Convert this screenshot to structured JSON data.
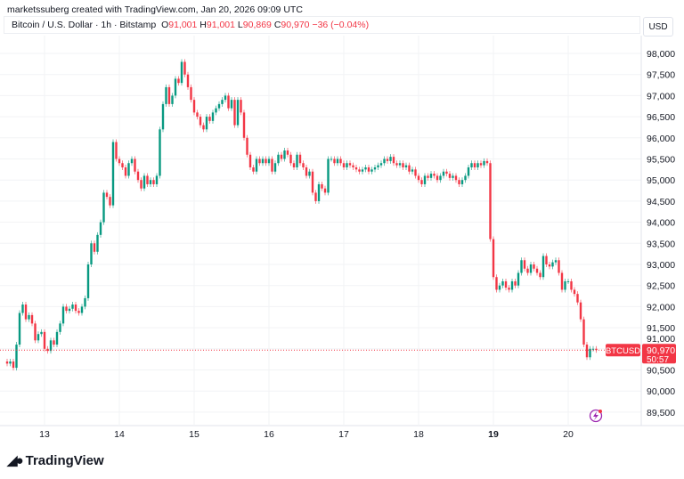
{
  "credit": "marketssuberg created with TradingView.com, Jan 20, 2026 09:09 UTC",
  "legend": {
    "symbol": "Bitcoin / U.S. Dollar · 1h · Bitstamp",
    "o_label": "O",
    "o": "91,001",
    "h_label": "H",
    "h": "91,001",
    "l_label": "L",
    "l": "90,869",
    "c_label": "C",
    "c": "90,970",
    "change": "−36 (−0.04%)"
  },
  "currency_button": "USD",
  "price_label": {
    "symbol": "BTCUSD",
    "price": "90,970",
    "countdown": "50:57"
  },
  "logo_text": "TradingView",
  "colors": {
    "up": "#089981",
    "down": "#f23645",
    "grid": "#f2f3f5"
  },
  "chart_data": {
    "type": "candlestick",
    "interval": "1h",
    "start": "Jan 12 12:00",
    "y_ticks": [
      89500,
      90000,
      90500,
      91000,
      91500,
      92000,
      92500,
      93000,
      93500,
      94000,
      94500,
      95000,
      95500,
      96000,
      96500,
      97000,
      97500,
      98000
    ],
    "y_tick_labels": [
      "89,500",
      "90,000",
      "90,500",
      "91,000",
      "91,500",
      "92,000",
      "92,500",
      "93,000",
      "93,500",
      "94,000",
      "94,500",
      "95,000",
      "95,500",
      "96,000",
      "96,500",
      "97,000",
      "97,500",
      "98,000"
    ],
    "x_ticks": [
      "13",
      "14",
      "15",
      "16",
      "17",
      "18",
      "19",
      "20"
    ],
    "x_tick_bold": "19",
    "grid": true,
    "last_price": 90970,
    "first_open": 90700,
    "close": [
      90650,
      90700,
      90550,
      91100,
      91850,
      92050,
      91700,
      91800,
      91600,
      91200,
      91350,
      91400,
      91000,
      90950,
      91200,
      91100,
      91400,
      91600,
      92000,
      91900,
      91950,
      92050,
      91900,
      91850,
      92000,
      92200,
      93000,
      93500,
      93300,
      93700,
      94000,
      94700,
      94600,
      94400,
      95900,
      95500,
      95400,
      95300,
      95100,
      95400,
      95500,
      95200,
      95000,
      94800,
      95100,
      94900,
      95000,
      94900,
      95100,
      96200,
      96800,
      97200,
      96800,
      97000,
      97400,
      97300,
      97800,
      97500,
      97200,
      96900,
      96600,
      96500,
      96300,
      96200,
      96500,
      96400,
      96600,
      96700,
      96800,
      96900,
      97000,
      96700,
      96900,
      96300,
      96900,
      96600,
      96000,
      95600,
      95300,
      95200,
      95500,
      95400,
      95500,
      95400,
      95500,
      95200,
      95400,
      95600,
      95500,
      95700,
      95600,
      95400,
      95300,
      95600,
      95400,
      95300,
      95100,
      95200,
      94700,
      94500,
      94900,
      94800,
      94700,
      95500,
      95500,
      95400,
      95500,
      95400,
      95300,
      95400,
      95350,
      95300,
      95250,
      95200,
      95250,
      95300,
      95200,
      95250,
      95300,
      95350,
      95400,
      95500,
      95450,
      95550,
      95400,
      95350,
      95400,
      95300,
      95350,
      95200,
      95250,
      95100,
      95000,
      94900,
      95100,
      95050,
      95150,
      95100,
      95000,
      95100,
      95200,
      95150,
      95050,
      95100,
      95000,
      94900,
      95000,
      95100,
      95300,
      95400,
      95300,
      95400,
      95350,
      95450,
      95400,
      93600,
      92700,
      92400,
      92500,
      92600,
      92450,
      92400,
      92600,
      92500,
      92800,
      93100,
      92900,
      92800,
      93000,
      92900,
      92800,
      92700,
      93200,
      93000,
      92950,
      93050,
      93100,
      92800,
      92400,
      92600,
      92600,
      92400,
      92300,
      92100,
      91700,
      91100,
      90800,
      91000,
      91001,
      90970
    ]
  }
}
